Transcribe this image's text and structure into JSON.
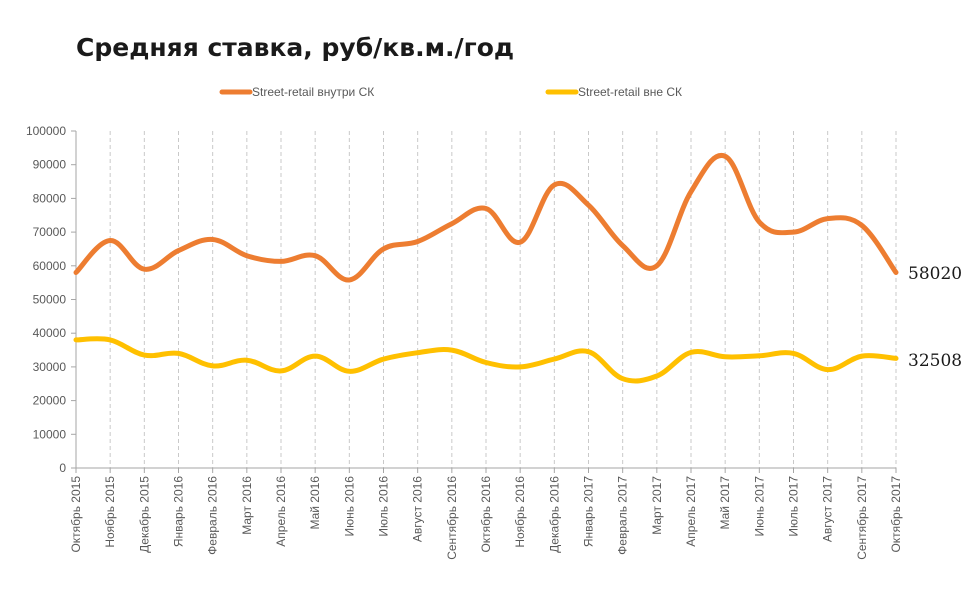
{
  "chart_data": {
    "type": "line",
    "title": "Средняя ставка, руб/кв.м./год",
    "categories": [
      "Октябрь 2015",
      "Ноябрь 2015",
      "Декабрь 2015",
      "Январь 2016",
      "Февраль 2016",
      "Март 2016",
      "Апрель 2016",
      "Май 2016",
      "Июнь 2016",
      "Июль 2016",
      "Август 2016",
      "Сентябрь 2016",
      "Октябрь 2016",
      "Ноябрь 2016",
      "Декабрь 2016",
      "Январь 2017",
      "Февраль 2017",
      "Март 2017",
      "Апрель 2017",
      "Май 2017",
      "Июнь 2017",
      "Июль 2017",
      "Август 2017",
      "Сентябрь 2017",
      "Октябрь 2017"
    ],
    "series": [
      {
        "name": "Street-retail внутри  СК",
        "color": "#ED7D31",
        "values": [
          58020,
          67500,
          59000,
          64500,
          67800,
          63000,
          61300,
          63000,
          55800,
          65000,
          67200,
          72500,
          77000,
          67000,
          84000,
          78000,
          66000,
          60000,
          82000,
          92500,
          73000,
          70000,
          74000,
          72000,
          58020
        ]
      },
      {
        "name": "Street-retail  вне СК",
        "color": "#FFC000",
        "values": [
          38000,
          38000,
          33500,
          34000,
          30300,
          32000,
          28800,
          33200,
          28700,
          32300,
          34200,
          35000,
          31300,
          30000,
          32300,
          34500,
          26500,
          27300,
          34300,
          33000,
          33300,
          34000,
          29200,
          33200,
          32508
        ]
      }
    ],
    "ylim": [
      0,
      100000
    ],
    "yticks": [
      0,
      10000,
      20000,
      30000,
      40000,
      50000,
      60000,
      70000,
      80000,
      90000,
      100000
    ],
    "end_labels": [
      "58020",
      "32508"
    ],
    "legend": "top",
    "grid": "vertical-dashed"
  }
}
